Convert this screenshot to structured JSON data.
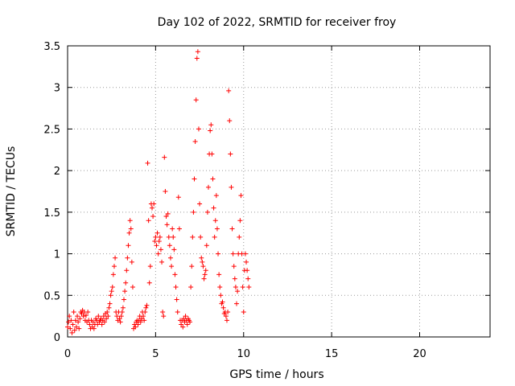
{
  "chart_data": {
    "type": "scatter",
    "title": "Day 102 of 2022, SRMTID for receiver froy",
    "xlabel": "GPS time / hours",
    "ylabel": "SRMTID / TECUs",
    "xlim": [
      0,
      24
    ],
    "ylim": [
      0,
      3.5
    ],
    "xticks": [
      0,
      5,
      10,
      15,
      20
    ],
    "xtick_labels": [
      "0",
      "5",
      "10",
      "15",
      "20"
    ],
    "yticks": [
      0,
      0.5,
      1,
      1.5,
      2,
      2.5,
      3,
      3.5
    ],
    "ytick_labels": [
      "0",
      "0.5",
      "1",
      "1.5",
      "2",
      "2.5",
      "3",
      "3.5"
    ],
    "grid": true,
    "marker": "plus",
    "series": [
      {
        "name": "SRMTID",
        "color": "#ff0000",
        "points": [
          [
            0.0,
            0.12
          ],
          [
            0.05,
            0.18
          ],
          [
            0.1,
            0.25
          ],
          [
            0.15,
            0.1
          ],
          [
            0.2,
            0.2
          ],
          [
            0.25,
            0.05
          ],
          [
            0.3,
            0.15
          ],
          [
            0.35,
            0.3
          ],
          [
            0.4,
            0.08
          ],
          [
            0.45,
            0.2
          ],
          [
            0.5,
            0.12
          ],
          [
            0.55,
            0.25
          ],
          [
            0.6,
            0.18
          ],
          [
            0.65,
            0.1
          ],
          [
            0.7,
            0.22
          ],
          [
            0.75,
            0.3
          ],
          [
            0.8,
            0.28
          ],
          [
            0.85,
            0.32
          ],
          [
            0.9,
            0.25
          ],
          [
            0.95,
            0.3
          ],
          [
            1.0,
            0.2
          ],
          [
            1.05,
            0.26
          ],
          [
            1.1,
            0.18
          ],
          [
            1.15,
            0.3
          ],
          [
            1.2,
            0.2
          ],
          [
            1.25,
            0.15
          ],
          [
            1.3,
            0.1
          ],
          [
            1.35,
            0.2
          ],
          [
            1.4,
            0.12
          ],
          [
            1.45,
            0.18
          ],
          [
            1.5,
            0.1
          ],
          [
            1.55,
            0.15
          ],
          [
            1.6,
            0.22
          ],
          [
            1.65,
            0.2
          ],
          [
            1.7,
            0.15
          ],
          [
            1.75,
            0.25
          ],
          [
            1.8,
            0.18
          ],
          [
            1.85,
            0.2
          ],
          [
            1.9,
            0.22
          ],
          [
            1.95,
            0.15
          ],
          [
            2.0,
            0.2
          ],
          [
            2.05,
            0.25
          ],
          [
            2.1,
            0.18
          ],
          [
            2.15,
            0.28
          ],
          [
            2.2,
            0.22
          ],
          [
            2.25,
            0.3
          ],
          [
            2.3,
            0.25
          ],
          [
            2.35,
            0.35
          ],
          [
            2.4,
            0.4
          ],
          [
            2.45,
            0.5
          ],
          [
            2.5,
            0.55
          ],
          [
            2.55,
            0.6
          ],
          [
            2.6,
            0.75
          ],
          [
            2.65,
            0.85
          ],
          [
            2.7,
            0.95
          ],
          [
            2.75,
            0.3
          ],
          [
            2.8,
            0.25
          ],
          [
            2.85,
            0.2
          ],
          [
            2.9,
            0.3
          ],
          [
            2.95,
            0.22
          ],
          [
            3.0,
            0.18
          ],
          [
            3.05,
            0.25
          ],
          [
            3.1,
            0.3
          ],
          [
            3.15,
            0.35
          ],
          [
            3.2,
            0.45
          ],
          [
            3.25,
            0.55
          ],
          [
            3.3,
            0.65
          ],
          [
            3.35,
            0.8
          ],
          [
            3.4,
            0.95
          ],
          [
            3.45,
            1.1
          ],
          [
            3.5,
            1.25
          ],
          [
            3.55,
            1.4
          ],
          [
            3.6,
            1.3
          ],
          [
            3.65,
            0.9
          ],
          [
            3.7,
            0.6
          ],
          [
            3.75,
            0.1
          ],
          [
            3.8,
            0.15
          ],
          [
            3.85,
            0.12
          ],
          [
            3.9,
            0.18
          ],
          [
            3.95,
            0.2
          ],
          [
            4.0,
            0.15
          ],
          [
            4.05,
            0.2
          ],
          [
            4.1,
            0.25
          ],
          [
            4.15,
            0.18
          ],
          [
            4.2,
            0.22
          ],
          [
            4.25,
            0.3
          ],
          [
            4.3,
            0.25
          ],
          [
            4.35,
            0.2
          ],
          [
            4.4,
            0.3
          ],
          [
            4.45,
            0.35
          ],
          [
            4.5,
            0.38
          ],
          [
            4.55,
            2.09
          ],
          [
            4.6,
            1.4
          ],
          [
            4.65,
            0.65
          ],
          [
            4.7,
            0.85
          ],
          [
            4.75,
            1.6
          ],
          [
            4.8,
            1.55
          ],
          [
            4.85,
            1.45
          ],
          [
            4.9,
            1.6
          ],
          [
            4.95,
            1.15
          ],
          [
            5.0,
            1.2
          ],
          [
            5.05,
            1.1
          ],
          [
            5.1,
            1.25
          ],
          [
            5.15,
            1.0
          ],
          [
            5.2,
            1.15
          ],
          [
            5.25,
            1.2
          ],
          [
            5.3,
            1.05
          ],
          [
            5.35,
            0.9
          ],
          [
            5.4,
            0.3
          ],
          [
            5.45,
            0.25
          ],
          [
            5.5,
            2.16
          ],
          [
            5.55,
            1.75
          ],
          [
            5.6,
            1.45
          ],
          [
            5.65,
            1.35
          ],
          [
            5.7,
            1.48
          ],
          [
            5.75,
            1.2
          ],
          [
            5.8,
            1.1
          ],
          [
            5.85,
            0.95
          ],
          [
            5.9,
            0.85
          ],
          [
            5.95,
            1.3
          ],
          [
            6.0,
            1.2
          ],
          [
            6.05,
            1.05
          ],
          [
            6.1,
            0.75
          ],
          [
            6.15,
            0.6
          ],
          [
            6.2,
            0.45
          ],
          [
            6.25,
            0.3
          ],
          [
            6.3,
            1.68
          ],
          [
            6.35,
            1.3
          ],
          [
            6.4,
            0.2
          ],
          [
            6.45,
            0.15
          ],
          [
            6.5,
            0.2
          ],
          [
            6.55,
            0.12
          ],
          [
            6.6,
            0.22
          ],
          [
            6.65,
            0.18
          ],
          [
            6.7,
            0.25
          ],
          [
            6.75,
            0.2
          ],
          [
            6.8,
            0.15
          ],
          [
            6.85,
            0.22
          ],
          [
            6.9,
            0.2
          ],
          [
            6.95,
            0.18
          ],
          [
            7.0,
            0.6
          ],
          [
            7.05,
            0.85
          ],
          [
            7.1,
            1.2
          ],
          [
            7.15,
            1.5
          ],
          [
            7.2,
            1.9
          ],
          [
            7.25,
            2.35
          ],
          [
            7.3,
            2.85
          ],
          [
            7.35,
            3.35
          ],
          [
            7.4,
            3.43
          ],
          [
            7.45,
            2.5
          ],
          [
            7.5,
            1.6
          ],
          [
            7.55,
            1.2
          ],
          [
            7.6,
            0.95
          ],
          [
            7.65,
            0.9
          ],
          [
            7.7,
            0.85
          ],
          [
            7.75,
            0.7
          ],
          [
            7.8,
            0.75
          ],
          [
            7.85,
            0.8
          ],
          [
            7.9,
            1.1
          ],
          [
            7.95,
            1.5
          ],
          [
            8.0,
            1.8
          ],
          [
            8.05,
            2.2
          ],
          [
            8.1,
            2.48
          ],
          [
            8.15,
            2.55
          ],
          [
            8.2,
            2.2
          ],
          [
            8.25,
            1.9
          ],
          [
            8.3,
            1.55
          ],
          [
            8.35,
            1.2
          ],
          [
            8.4,
            1.4
          ],
          [
            8.45,
            1.7
          ],
          [
            8.5,
            1.3
          ],
          [
            8.55,
            1.0
          ],
          [
            8.6,
            0.75
          ],
          [
            8.65,
            0.6
          ],
          [
            8.7,
            0.5
          ],
          [
            8.75,
            0.4
          ],
          [
            8.8,
            0.42
          ],
          [
            8.85,
            0.35
          ],
          [
            8.9,
            0.28
          ],
          [
            8.95,
            0.3
          ],
          [
            9.0,
            0.25
          ],
          [
            9.05,
            0.2
          ],
          [
            9.1,
            0.3
          ],
          [
            9.15,
            2.96
          ],
          [
            9.2,
            2.6
          ],
          [
            9.25,
            2.2
          ],
          [
            9.3,
            1.8
          ],
          [
            9.35,
            1.3
          ],
          [
            9.4,
            1.0
          ],
          [
            9.45,
            0.85
          ],
          [
            9.5,
            0.7
          ],
          [
            9.55,
            0.6
          ],
          [
            9.6,
            0.4
          ],
          [
            9.65,
            0.55
          ],
          [
            9.7,
            1.0
          ],
          [
            9.75,
            1.2
          ],
          [
            9.8,
            1.4
          ],
          [
            9.85,
            1.7
          ],
          [
            9.9,
            1.0
          ],
          [
            9.95,
            0.6
          ],
          [
            10.0,
            0.3
          ],
          [
            10.05,
            0.8
          ],
          [
            10.1,
            1.0
          ],
          [
            10.15,
            0.9
          ],
          [
            10.2,
            0.8
          ],
          [
            10.25,
            0.7
          ],
          [
            10.3,
            0.6
          ]
        ]
      }
    ]
  }
}
